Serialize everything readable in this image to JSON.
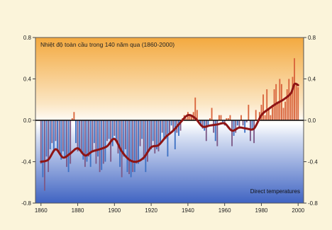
{
  "chart_data": {
    "type": "bar",
    "title": "Nhiệt độ toàn cầu trong 140 năm qua (1860-2000)",
    "annotation": "Direct temperatures",
    "xlabel": "",
    "ylabel": "",
    "xlim": [
      1857,
      2003
    ],
    "ylim": [
      -0.8,
      0.8
    ],
    "x_ticks": [
      "1860",
      "1880",
      "1900",
      "1920",
      "1940",
      "1960",
      "1980",
      "2000"
    ],
    "y_ticks_left": [
      "0.8",
      "0.4",
      "0.0",
      "-0.4",
      "-0.8"
    ],
    "y_ticks_right": [
      "0.8",
      "0.4",
      "0.0",
      "-0.4",
      "-0.8"
    ],
    "grid": false,
    "colors": {
      "bars_negative": "#3f72c4",
      "bars_positive": "#d9653c",
      "smoothed_line": "#8e1515",
      "zero_line": "#000000",
      "background_top": "#f3a93f",
      "background_bottom": "#3f63c2"
    },
    "series": [
      {
        "years": [
          1860,
          1861,
          1862,
          1863,
          1864,
          1865,
          1866,
          1867,
          1868,
          1869,
          1870,
          1871,
          1872,
          1873,
          1874,
          1875,
          1876,
          1877,
          1878,
          1879,
          1880,
          1881,
          1882,
          1883,
          1884,
          1885,
          1886,
          1887,
          1888,
          1889,
          1890,
          1891,
          1892,
          1893,
          1894,
          1895,
          1896,
          1897,
          1898,
          1899,
          1900,
          1901,
          1902,
          1903,
          1904,
          1905,
          1906,
          1907,
          1908,
          1909,
          1910,
          1911,
          1912,
          1913,
          1914,
          1915,
          1916,
          1917,
          1918,
          1919,
          1920,
          1921,
          1922,
          1923,
          1924,
          1925,
          1926,
          1927,
          1928,
          1929,
          1930,
          1931,
          1932,
          1933,
          1934,
          1935,
          1936,
          1937,
          1938,
          1939,
          1940,
          1941,
          1942,
          1943,
          1944,
          1945,
          1946,
          1947,
          1948,
          1949,
          1950,
          1951,
          1952,
          1953,
          1954,
          1955,
          1956,
          1957,
          1958,
          1959,
          1960,
          1961,
          1962,
          1963,
          1964,
          1965,
          1966,
          1967,
          1968,
          1969,
          1970,
          1971,
          1972,
          1973,
          1974,
          1975,
          1976,
          1977,
          1978,
          1979,
          1980,
          1981,
          1982,
          1983,
          1984,
          1985,
          1986,
          1987,
          1988,
          1989,
          1990,
          1991,
          1992,
          1993,
          1994,
          1995,
          1996,
          1997,
          1998,
          1999,
          2000
        ],
        "annual": [
          -0.42,
          -0.55,
          -0.68,
          -0.35,
          -0.5,
          -0.28,
          -0.22,
          -0.3,
          -0.2,
          -0.28,
          -0.32,
          -0.38,
          -0.3,
          -0.35,
          -0.45,
          -0.5,
          -0.42,
          0.02,
          0.08,
          -0.22,
          -0.3,
          -0.28,
          -0.32,
          -0.38,
          -0.45,
          -0.4,
          -0.35,
          -0.45,
          -0.3,
          -0.22,
          -0.42,
          -0.35,
          -0.5,
          -0.48,
          -0.42,
          -0.4,
          -0.2,
          -0.18,
          -0.4,
          -0.25,
          -0.15,
          -0.2,
          -0.32,
          -0.45,
          -0.55,
          -0.35,
          -0.28,
          -0.5,
          -0.52,
          -0.55,
          -0.5,
          -0.5,
          -0.42,
          -0.42,
          -0.25,
          -0.18,
          -0.38,
          -0.5,
          -0.4,
          -0.3,
          -0.28,
          -0.2,
          -0.32,
          -0.28,
          -0.3,
          -0.22,
          -0.12,
          -0.18,
          -0.18,
          -0.35,
          -0.12,
          -0.05,
          -0.1,
          -0.28,
          -0.12,
          -0.15,
          -0.1,
          0.02,
          0.05,
          0.02,
          0.08,
          0.05,
          0.05,
          0.08,
          0.22,
          0.1,
          -0.02,
          -0.05,
          -0.08,
          -0.1,
          -0.2,
          -0.05,
          0.02,
          0.12,
          -0.12,
          -0.2,
          -0.25,
          0.05,
          0.05,
          -0.02,
          -0.05,
          0.02,
          0.02,
          0.05,
          -0.25,
          -0.15,
          -0.12,
          -0.05,
          -0.08,
          0.05,
          -0.05,
          -0.12,
          -0.02,
          0.15,
          -0.2,
          -0.1,
          -0.22,
          0.1,
          0.0,
          0.08,
          0.15,
          0.25,
          0.05,
          0.3,
          0.12,
          0.05,
          0.15,
          0.3,
          0.35,
          0.18,
          0.4,
          0.35,
          0.12,
          0.18,
          0.3,
          0.4,
          0.25,
          0.42,
          0.6,
          0.35,
          0.32
        ]
      },
      {
        "years": [
          1860,
          1864,
          1868,
          1872,
          1876,
          1880,
          1884,
          1888,
          1892,
          1896,
          1900,
          1904,
          1908,
          1912,
          1916,
          1920,
          1924,
          1928,
          1932,
          1936,
          1940,
          1944,
          1948,
          1952,
          1956,
          1960,
          1964,
          1968,
          1972,
          1976,
          1980,
          1984,
          1988,
          1992,
          1996,
          1998,
          2000
        ],
        "smoothed": [
          -0.4,
          -0.38,
          -0.28,
          -0.36,
          -0.32,
          -0.27,
          -0.34,
          -0.3,
          -0.28,
          -0.25,
          -0.18,
          -0.3,
          -0.38,
          -0.4,
          -0.36,
          -0.26,
          -0.24,
          -0.16,
          -0.1,
          -0.02,
          0.05,
          0.02,
          -0.06,
          -0.05,
          -0.04,
          -0.03,
          -0.1,
          -0.07,
          -0.08,
          -0.08,
          0.05,
          0.11,
          0.16,
          0.2,
          0.26,
          0.35,
          0.34
        ]
      }
    ]
  }
}
